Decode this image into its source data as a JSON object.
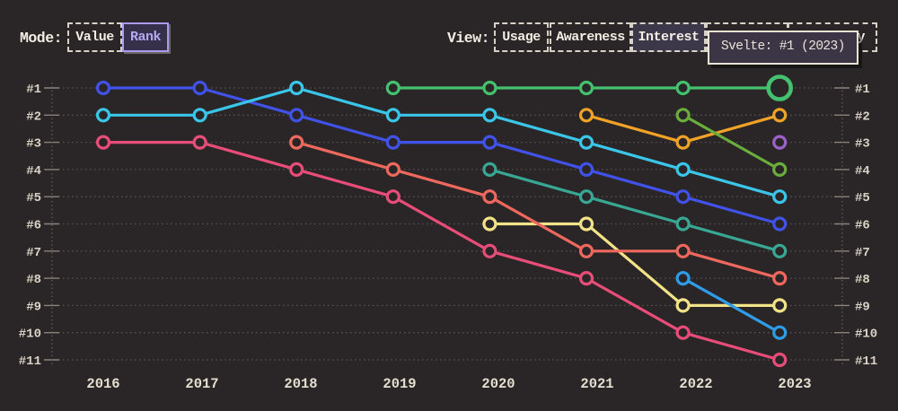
{
  "header": {
    "mode_label": "Mode:",
    "view_label": "View:",
    "mode_options": [
      {
        "label": "Value",
        "selected": false
      },
      {
        "label": "Rank",
        "selected": true
      }
    ],
    "view_options": [
      {
        "label": "Usage",
        "selected": false
      },
      {
        "label": "Awareness",
        "selected": false
      },
      {
        "label": "Interest",
        "selected": true
      },
      {
        "label": "",
        "selected": false
      },
      {
        "label": "ty",
        "selected": false
      }
    ]
  },
  "tooltip": {
    "text": "Svelte: #1 (2023)"
  },
  "colors": {
    "background": "#2a2526",
    "grid_dots": "#575150",
    "axis_line": "#6c6662",
    "tick": "#8a837c",
    "axis_text": "#d9d3c7",
    "year_text": "#e5dfd2",
    "accent_purple": "#b7a6f2",
    "tooltip_border": "#e9e3d6"
  },
  "chart_data": {
    "type": "line",
    "subtype": "bump-rank-chart",
    "x": [
      "2016",
      "2017",
      "2018",
      "2019",
      "2020",
      "2021",
      "2022",
      "2023"
    ],
    "rank_axis": [
      "#1",
      "#2",
      "#3",
      "#4",
      "#5",
      "#6",
      "#7",
      "#8",
      "#9",
      "#10",
      "#11"
    ],
    "grid": "dotted",
    "legend": "none",
    "axis_sides": [
      "left",
      "right"
    ],
    "series": [
      {
        "name": "blue",
        "color": "#4052e8",
        "ranks": [
          1,
          1,
          2,
          3,
          3,
          4,
          5,
          6
        ]
      },
      {
        "name": "cyan",
        "color": "#3ac6e8",
        "ranks": [
          2,
          2,
          1,
          2,
          2,
          3,
          4,
          5
        ]
      },
      {
        "name": "pink",
        "color": "#e84d7a",
        "ranks": [
          3,
          3,
          4,
          5,
          7,
          8,
          10,
          11
        ]
      },
      {
        "name": "yellow",
        "color": "#f2e388",
        "ranks": [
          null,
          null,
          null,
          null,
          6,
          6,
          9,
          9
        ]
      },
      {
        "name": "salmon",
        "color": "#ee685e",
        "ranks": [
          null,
          null,
          3,
          4,
          5,
          7,
          7,
          8
        ]
      },
      {
        "name": "svelte-green",
        "color": "#44c16e",
        "ranks": [
          null,
          null,
          null,
          1,
          1,
          1,
          1,
          1
        ],
        "highlight_last": true
      },
      {
        "name": "teal",
        "color": "#38a793",
        "ranks": [
          null,
          null,
          null,
          null,
          4,
          5,
          6,
          7
        ]
      },
      {
        "name": "orange",
        "color": "#f0a326",
        "ranks": [
          null,
          null,
          null,
          null,
          null,
          2,
          3,
          2
        ]
      },
      {
        "name": "lime",
        "color": "#69ad3d",
        "ranks": [
          null,
          null,
          null,
          null,
          null,
          null,
          2,
          4
        ]
      },
      {
        "name": "skyblue",
        "color": "#2f9ce8",
        "ranks": [
          null,
          null,
          null,
          null,
          null,
          null,
          8,
          10
        ]
      },
      {
        "name": "purple",
        "color": "#9d61cc",
        "ranks": [
          null,
          null,
          null,
          null,
          null,
          null,
          null,
          3
        ]
      }
    ]
  }
}
